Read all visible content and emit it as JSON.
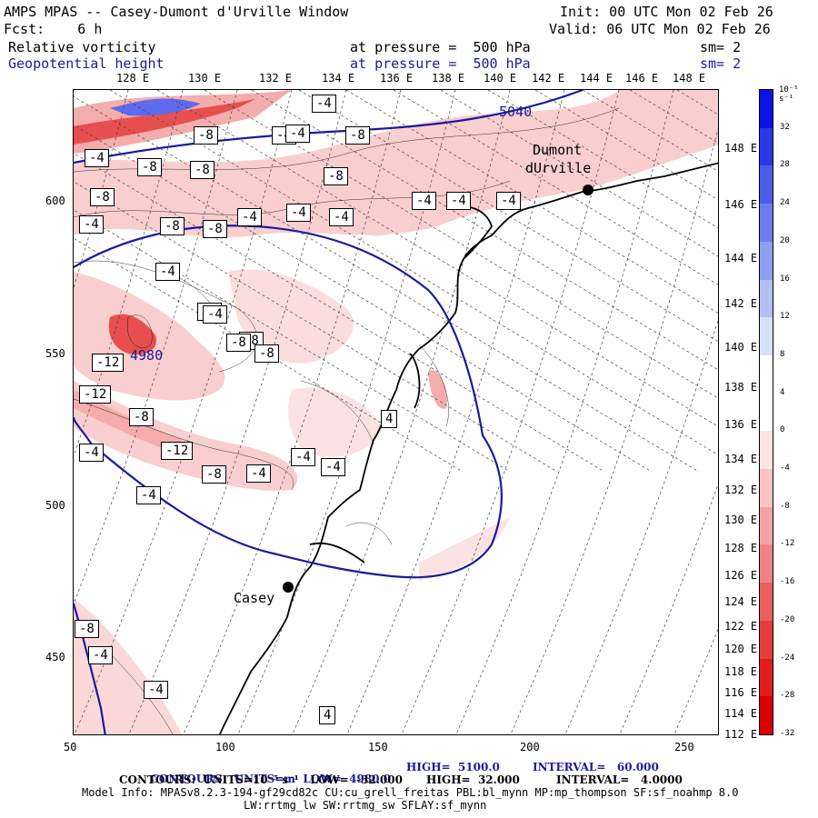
{
  "header": {
    "title": "AMPS MPAS -- Casey-Dumont d'Urville Window",
    "init": "Init: 00 UTC Mon 02 Feb 26",
    "fcst": "Fcst:    6 h",
    "valid": "Valid: 06 UTC Mon 02 Feb 26",
    "field1_name": "Relative vorticity",
    "field1_level": "at pressure =  500 hPa",
    "field1_sm": "sm= 2",
    "field2_name": "Geopotential height",
    "field2_level": "at pressure =  500 hPa",
    "field2_sm": "sm= 2"
  },
  "top_lon_labels": [
    "128 E",
    "130 E",
    "132 E",
    "134 E",
    "136 E",
    "138 E",
    "140 E",
    "142 E",
    "144 E",
    "146 E",
    "148 E"
  ],
  "right_lon_labels": [
    "148 E",
    "146 E",
    "144 E",
    "142 E",
    "140 E",
    "138 E",
    "136 E",
    "134 E",
    "132 E",
    "130 E",
    "128 E",
    "126 E",
    "124 E",
    "122 E",
    "120 E",
    "118 E",
    "116 E",
    "114 E",
    "112 E"
  ],
  "x_axis_ticks": [
    "50",
    "100",
    "150",
    "200",
    "250"
  ],
  "y_axis_ticks": [
    "600",
    "550",
    "500",
    "450"
  ],
  "places": [
    {
      "name": "Dumont dUrville",
      "line1": "Dumont",
      "line2": "dUrville"
    },
    {
      "name": "Casey",
      "line1": "Casey"
    }
  ],
  "contour_labels_vort": [
    "-8",
    "-4",
    "-8",
    "-8",
    "-8",
    "-4",
    "-4",
    "-8",
    "-4",
    "-4",
    "-4",
    "-4",
    "-4",
    "-8",
    "-8",
    "-4",
    "-8",
    "-4",
    "-4",
    "-4",
    "-8",
    "-12",
    "-8",
    "-4",
    "-12",
    "-8",
    "-12",
    "-4",
    "-8",
    "-4",
    "-4",
    "-4",
    "-4",
    "4",
    "-4",
    "-8",
    "-8",
    "-4",
    "-4",
    "4"
  ],
  "contour_labels_height": [
    "5040",
    "4980"
  ],
  "colorbar": {
    "unit": "10⁻⁵ s⁻¹",
    "labels": [
      "32",
      "28",
      "24",
      "20",
      "16",
      "12",
      "8",
      "4",
      "0",
      "-4",
      "-8",
      "-12",
      "-16",
      "-20",
      "-24",
      "-28",
      "-32"
    ],
    "colors": [
      "#0a14e6",
      "#2a39e8",
      "#4b5bea",
      "#6b7cec",
      "#8f9ff0",
      "#b3c0f4",
      "#d7dffa",
      "#ffffff",
      "#ffffff",
      "#fde3e3",
      "#f9c4c4",
      "#f4a3a3",
      "#ef8282",
      "#ea5f5f",
      "#e53c3c",
      "#e01c1c",
      "#d80000"
    ]
  },
  "footer": {
    "line1_a": "CONTOURS:  UNITS=m  LOW=  4980.0",
    "line1_b": "HIGH=  5100.0",
    "line1_c": "INTERVAL=   60.000",
    "line2_a": "CONTOURS:  UNITS=10⁻⁵ s⁻¹   LOW=  -32.000",
    "line2_b": "HIGH=  32.000",
    "line2_c": "INTERVAL=   4.0000",
    "line3": "Model Info: MPASv8.2.3-194-gf29cd82c CU:cu_grell_freitas PBL:bl_mynn MP:mp_thompson SF:sf_noahmp 8.0",
    "line4": "LW:rrtmg_lw SW:rrtmg_sw SFLAY:sf_mynn"
  },
  "colors": {
    "height_contour": "#1a1aa0",
    "vort_neg": "#e06060",
    "coast": "#000000"
  }
}
